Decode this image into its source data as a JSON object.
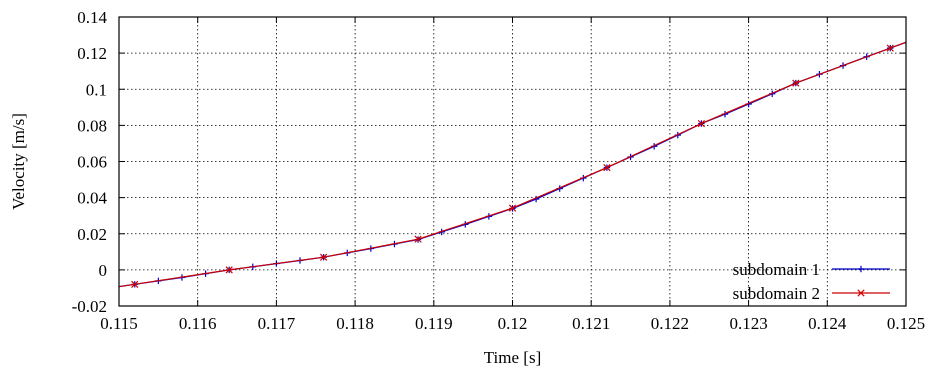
{
  "chart_data": {
    "type": "line",
    "title": "",
    "xlabel": "Time [s]",
    "ylabel": "Velocity [m/s]",
    "xlim": [
      0.115,
      0.125
    ],
    "ylim": [
      -0.02,
      0.14
    ],
    "xticks": [
      0.115,
      0.116,
      0.117,
      0.118,
      0.119,
      0.12,
      0.121,
      0.122,
      0.123,
      0.124,
      0.125
    ],
    "xtick_labels": [
      "0.115",
      "0.116",
      "0.117",
      "0.118",
      "0.119",
      "0.12",
      "0.121",
      "0.122",
      "0.123",
      "0.124",
      "0.125"
    ],
    "yticks": [
      -0.02,
      0,
      0.02,
      0.04,
      0.06,
      0.08,
      0.1,
      0.12,
      0.14
    ],
    "ytick_labels": [
      "-0.02",
      "0",
      "0.02",
      "0.04",
      "0.06",
      "0.08",
      "0.1",
      "0.12",
      "0.14"
    ],
    "grid": true,
    "legend_position": "bottom-right",
    "series": [
      {
        "name": "subdomain 1",
        "color": "#0000cc",
        "marker": "plus",
        "x": [
          0.1152,
          0.1155,
          0.1158,
          0.1161,
          0.1164,
          0.1167,
          0.117,
          0.1173,
          0.1176,
          0.1179,
          0.1182,
          0.1185,
          0.1188,
          0.1191,
          0.1194,
          0.1197,
          0.12,
          0.1203,
          0.1206,
          0.1209,
          0.1212,
          0.1215,
          0.1218,
          0.1221,
          0.1224,
          0.1227,
          0.123,
          0.1233,
          0.1236,
          0.1239,
          0.1242,
          0.1245,
          0.1248
        ],
        "y": [
          -0.008,
          -0.0061,
          -0.0042,
          -0.0021,
          0.0,
          0.0017,
          0.0035,
          0.0052,
          0.007,
          0.0094,
          0.0118,
          0.0143,
          0.0168,
          0.021,
          0.0252,
          0.0296,
          0.034,
          0.0392,
          0.045,
          0.0508,
          0.0566,
          0.0625,
          0.0684,
          0.0746,
          0.081,
          0.0862,
          0.0918,
          0.0975,
          0.1034,
          0.1083,
          0.1131,
          0.118,
          0.1228
        ]
      },
      {
        "name": "subdomain 2",
        "color": "#cc0000",
        "marker": "cross",
        "x": [
          0.1152,
          0.1164,
          0.1176,
          0.1188,
          0.12,
          0.1212,
          0.1224,
          0.1236,
          0.1248
        ],
        "y": [
          -0.008,
          0.0,
          0.007,
          0.017,
          0.0342,
          0.0566,
          0.081,
          0.1034,
          0.1228
        ]
      }
    ]
  }
}
